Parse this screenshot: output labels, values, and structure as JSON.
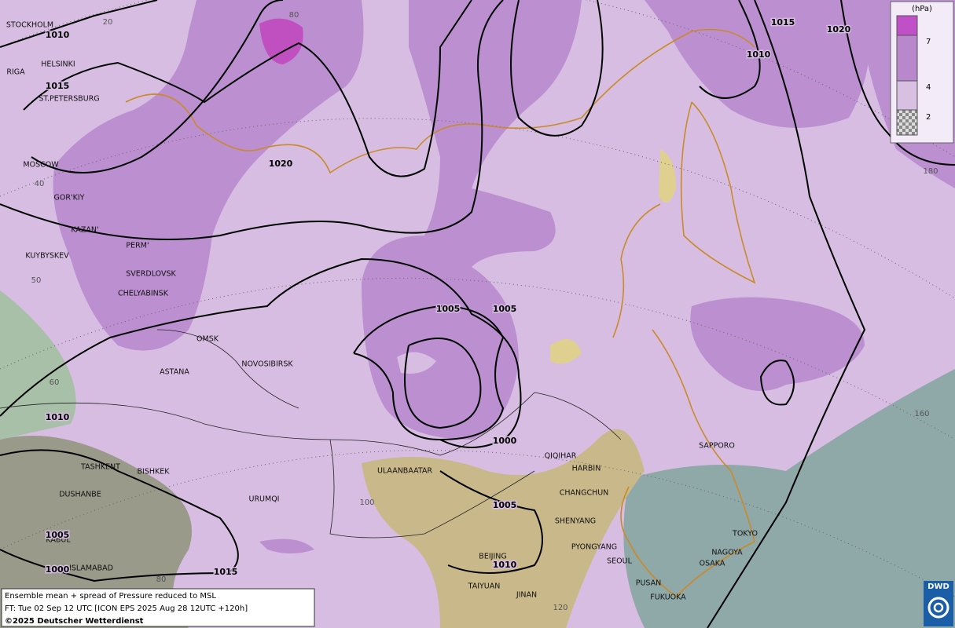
{
  "legend": {
    "unit": "(hPa)",
    "levels": [
      7,
      4,
      2
    ]
  },
  "footer": {
    "line1": "Ensemble mean + spread of Pressure reduced to MSL",
    "line2": "FT: Tue 02 Sep 12 UTC [ICON EPS 2025 Aug 28 12UTC +120h]",
    "line3": "©2025 Deutscher Wetterdienst"
  },
  "logo": "DWD",
  "cities": [
    "STOCKHOLM",
    "HELSINKI",
    "RIGA",
    "ST.PETERSBURG",
    "MOSCOW",
    "GOR'KIY",
    "KAZAN'",
    "PERM'",
    "KUYBYSKEV",
    "SVERDLOVSK",
    "CHELYABINSK",
    "OMSK",
    "ASTANA",
    "NOVOSIBIRSK",
    "TASHKENT",
    "BISHKEK",
    "DUSHANBE",
    "URUMQI",
    "KABUL",
    "ISLAMABAD",
    "ULAANBAATAR",
    "QIQIHAR",
    "HARBIN",
    "CHANGCHUN",
    "SHENYANG",
    "PYONGYANG",
    "SEOUL",
    "BEIJING",
    "TAIYUAN",
    "JINAN",
    "PUSAN",
    "FUKUOKA",
    "OSAKA",
    "NAGOYA",
    "TOKYO",
    "SAPPORO"
  ],
  "isobar_labels": [
    1010,
    1015,
    1020,
    1015,
    1020,
    1010,
    1005,
    1005,
    1000,
    1005,
    1010,
    1005,
    1000,
    1015,
    1010
  ],
  "grid_labels": [
    20,
    80,
    40,
    50,
    60,
    100,
    80,
    120,
    180,
    160
  ]
}
